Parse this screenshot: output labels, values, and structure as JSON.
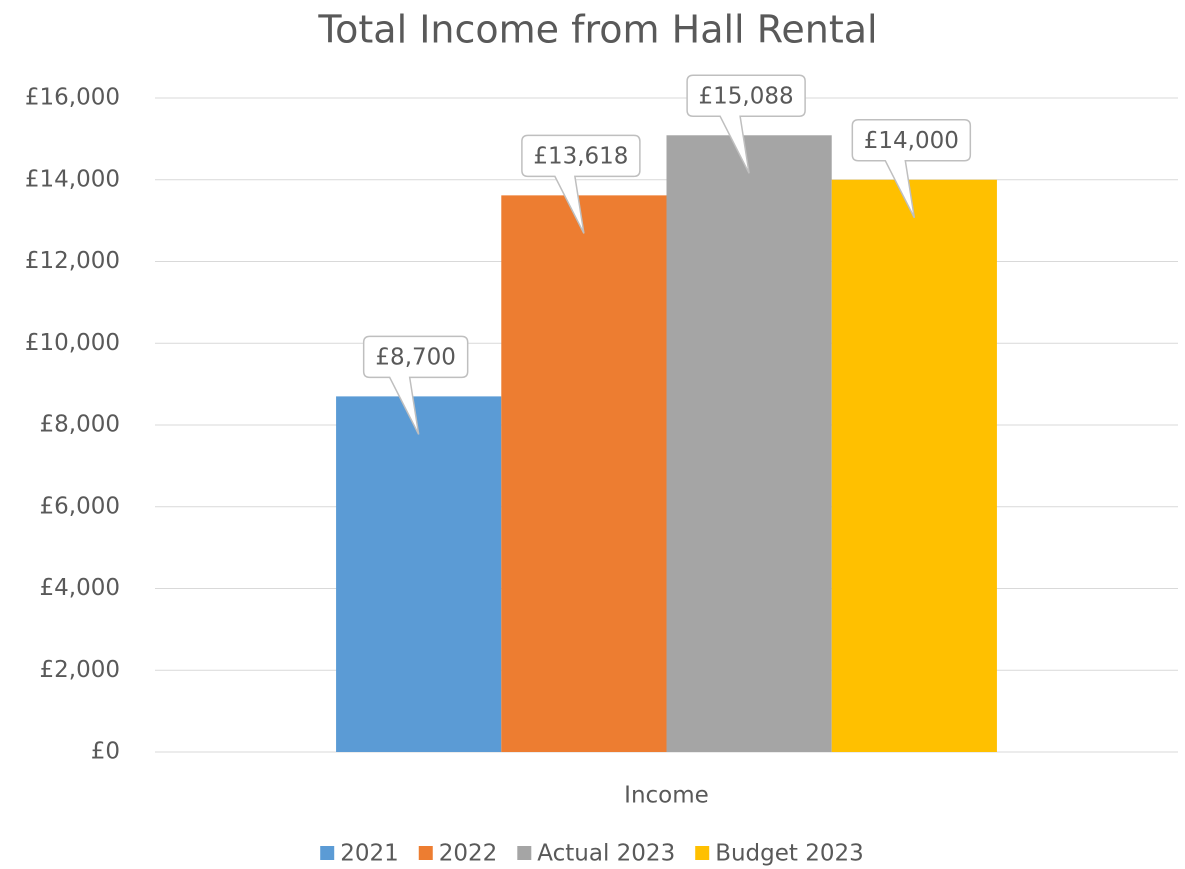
{
  "chart_data": {
    "type": "bar",
    "title": "Total Income from Hall Rental",
    "categories": [
      "Income"
    ],
    "series": [
      {
        "name": "2021",
        "color": "#5b9bd5",
        "values": [
          8700
        ],
        "value_labels": [
          "£8,700"
        ]
      },
      {
        "name": "2022",
        "color": "#ed7d31",
        "values": [
          13618
        ],
        "value_labels": [
          "£13,618"
        ]
      },
      {
        "name": "Actual 2023",
        "color": "#a5a5a5",
        "values": [
          15088
        ],
        "value_labels": [
          "£15,088"
        ]
      },
      {
        "name": "Budget 2023",
        "color": "#ffc000",
        "values": [
          14000
        ],
        "value_labels": [
          "£14,000"
        ]
      }
    ],
    "ylim": [
      0,
      16000
    ],
    "yticks": [
      {
        "value": 0,
        "label": "£0"
      },
      {
        "value": 2000,
        "label": "£2,000"
      },
      {
        "value": 4000,
        "label": "£4,000"
      },
      {
        "value": 6000,
        "label": "£6,000"
      },
      {
        "value": 8000,
        "label": "£8,000"
      },
      {
        "value": 10000,
        "label": "£10,000"
      },
      {
        "value": 12000,
        "label": "£12,000"
      },
      {
        "value": 14000,
        "label": "£14,000"
      },
      {
        "value": 16000,
        "label": "£16,000"
      }
    ],
    "grid": true,
    "legend": "bottom"
  }
}
